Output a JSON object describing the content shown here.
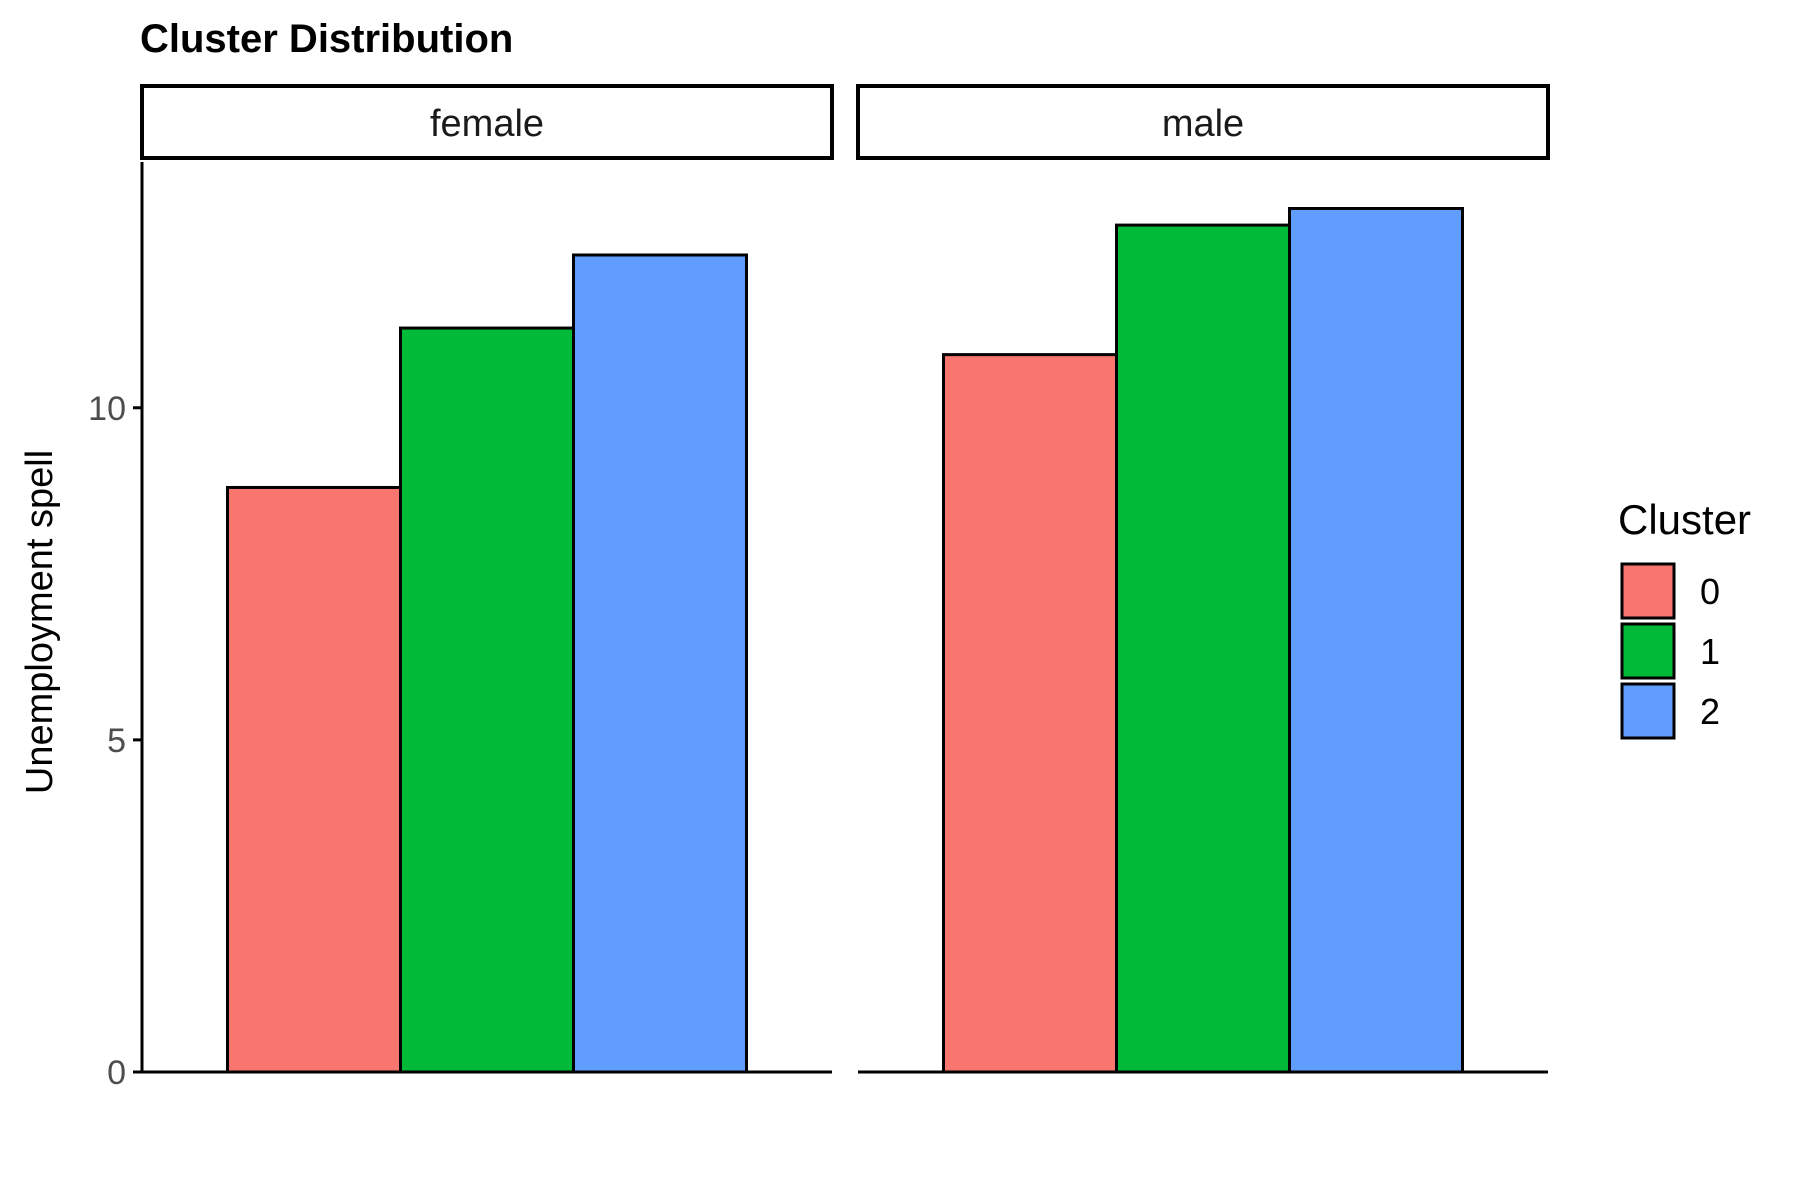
{
  "chart_data": {
    "type": "bar",
    "title": "Cluster Distribution",
    "xlabel": "",
    "ylabel": "Unemployment spell",
    "ylim": [
      0,
      13.7
    ],
    "yticks": [
      0,
      5,
      10
    ],
    "facets": [
      "female",
      "male"
    ],
    "categories": [
      "0",
      "1",
      "2"
    ],
    "series": [
      {
        "facet": "female",
        "values": [
          8.8,
          11.2,
          12.3
        ]
      },
      {
        "facet": "male",
        "values": [
          10.8,
          12.75,
          13.0
        ]
      }
    ],
    "legend": {
      "title": "Cluster",
      "placement": "right",
      "entries": [
        "0",
        "1",
        "2"
      ]
    },
    "colors": {
      "0": "#F8766D",
      "1": "#00BA38",
      "2": "#619CFF"
    },
    "grid": false
  }
}
